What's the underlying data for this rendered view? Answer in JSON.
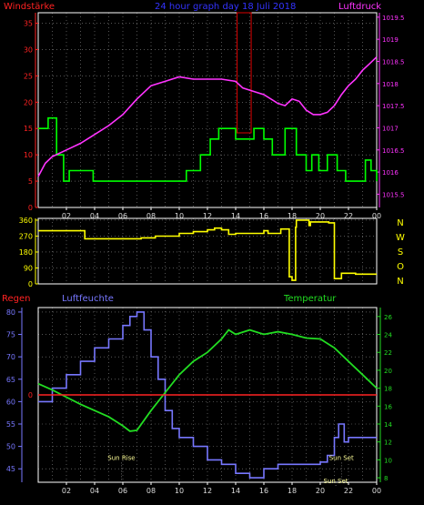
{
  "colors": {
    "background": "#000000",
    "frame": "#ffffff",
    "grid": "#8a8a8a",
    "wind_speed": "#00ff00",
    "pressure": "#ff33ff",
    "wind_dir": "#ffff00",
    "humidity": "#7777ff",
    "temperature": "#22dd22",
    "rain": "#ff2222",
    "title": "#3333ff",
    "highlight_box": "#dd0000"
  },
  "chart_data": [
    {
      "type": "line",
      "title": "24 hour graph day 18 Juli 2018",
      "left_label": "Windstärke",
      "right_label": "Luftdruck",
      "x_ticks": [
        "02",
        "04",
        "06",
        "08",
        "10",
        "12",
        "14",
        "16",
        "18",
        "20",
        "22",
        "00"
      ],
      "ylim_left": [
        0,
        37
      ],
      "yticks_left": [
        "0",
        "5",
        "10",
        "15",
        "20",
        "25",
        "30",
        "35"
      ],
      "ylim_right": [
        1015.2,
        1019.6
      ],
      "yticks_right": [
        "1015.5",
        "1016",
        "1016.5",
        "1017",
        "1017.5",
        "1018",
        "1018.5",
        "1019",
        "1019.5"
      ],
      "grid": true,
      "highlight_range_hours": [
        14.1,
        15.1
      ],
      "series": [
        {
          "name": "Windstärke",
          "axis": "left",
          "step": true,
          "x": [
            0,
            0.7,
            1.3,
            1.8,
            2.2,
            3.3,
            3.9,
            4.2,
            9.5,
            10.5,
            11.5,
            12.2,
            12.8,
            14,
            15.3,
            16,
            16.6,
            17.5,
            18.3,
            19.0,
            19.4,
            19.9,
            20.5,
            21.2,
            21.8,
            22.5,
            23.2,
            23.6,
            24
          ],
          "y": [
            15,
            17,
            10,
            5,
            7,
            7,
            5,
            5,
            5,
            7,
            10,
            13,
            15,
            13,
            15,
            13,
            10,
            15,
            10,
            7,
            10,
            7,
            10,
            7,
            5,
            5,
            9,
            7,
            5
          ]
        },
        {
          "name": "Luftdruck",
          "axis": "right",
          "x": [
            0,
            0.5,
            1,
            2,
            3,
            4,
            5,
            6,
            7,
            8,
            9,
            10,
            11,
            12,
            13,
            14,
            14.5,
            15,
            16,
            17,
            17.5,
            18,
            18.5,
            19,
            19.5,
            20,
            20.5,
            21,
            21.5,
            22,
            22.5,
            23,
            23.5,
            24
          ],
          "y": [
            1015.9,
            1016.2,
            1016.35,
            1016.5,
            1016.65,
            1016.85,
            1017.05,
            1017.3,
            1017.65,
            1017.95,
            1018.05,
            1018.15,
            1018.1,
            1018.1,
            1018.1,
            1018.05,
            1017.9,
            1017.85,
            1017.75,
            1017.55,
            1017.5,
            1017.65,
            1017.6,
            1017.4,
            1017.3,
            1017.3,
            1017.35,
            1017.5,
            1017.75,
            1017.95,
            1018.1,
            1018.3,
            1018.45,
            1018.6
          ]
        }
      ]
    },
    {
      "type": "line",
      "title": "",
      "x_ticks": [
        "02",
        "04",
        "06",
        "08",
        "10",
        "12",
        "14",
        "16",
        "18",
        "20",
        "22",
        "00"
      ],
      "ylim": [
        0,
        370
      ],
      "yticks": [
        "0",
        "90",
        "180",
        "270",
        "360"
      ],
      "right_labels": [
        "N",
        "W",
        "S",
        "O",
        "N"
      ],
      "grid": true,
      "series": [
        {
          "name": "Windrichtung",
          "step": true,
          "x": [
            0,
            3.0,
            3.3,
            7.3,
            8.3,
            10,
            11,
            12,
            12.5,
            13,
            13.5,
            14,
            16,
            16.3,
            17.2,
            17.8,
            18.0,
            18.25,
            18.3,
            19.2,
            19.3,
            20.6,
            21,
            21.5,
            22.5,
            24
          ],
          "y": [
            300,
            300,
            255,
            260,
            270,
            285,
            295,
            305,
            315,
            305,
            280,
            285,
            300,
            285,
            310,
            40,
            20,
            320,
            360,
            330,
            350,
            345,
            30,
            60,
            55,
            55
          ]
        }
      ]
    },
    {
      "type": "line",
      "title": "",
      "labels": {
        "rain": "Regen",
        "humidity": "Luftfeuchte",
        "temperature": "Temperatur"
      },
      "x_ticks": [
        "02",
        "04",
        "06",
        "08",
        "10",
        "12",
        "14",
        "16",
        "18",
        "20",
        "22",
        "00"
      ],
      "ylim_left": [
        42,
        81
      ],
      "yticks_left": [
        "45",
        "50",
        "55",
        "60",
        "65",
        "70",
        "75",
        "80"
      ],
      "ylim_right": [
        7.5,
        27
      ],
      "yticks_right": [
        "8",
        "10",
        "12",
        "14",
        "16",
        "18",
        "20",
        "22",
        "24",
        "26"
      ],
      "rain_ticks": [
        {
          "label": "0",
          "value": 0
        }
      ],
      "annotations": [
        {
          "text": "Sun Rise",
          "hour": 5.9,
          "value": 47
        },
        {
          "text": "Sun Set",
          "hour": 21.5,
          "value": 47
        },
        {
          "text": "Sun Set",
          "hour": 21.1,
          "value": 41.8
        }
      ],
      "grid": true,
      "series": [
        {
          "name": "Regen",
          "axis": "rain",
          "x": [
            0,
            24
          ],
          "y": [
            0,
            0
          ]
        },
        {
          "name": "Luftfeuchte",
          "axis": "left",
          "step": true,
          "x": [
            0,
            1,
            2,
            3,
            4,
            5,
            6,
            6.5,
            7,
            7.5,
            8,
            8.5,
            9,
            9.5,
            10,
            11,
            12,
            13,
            14,
            15,
            16,
            17,
            18,
            19,
            20,
            20.5,
            21,
            21.3,
            21.7,
            22,
            22.5,
            24
          ],
          "y": [
            60,
            63,
            66,
            69,
            72,
            74,
            77,
            79,
            80,
            76,
            70,
            65,
            58,
            54,
            52,
            50,
            47,
            46,
            44,
            43,
            45,
            46,
            46,
            46,
            46.5,
            48,
            52,
            55,
            51,
            52,
            52,
            52
          ]
        },
        {
          "name": "Temperatur",
          "axis": "right",
          "x": [
            0,
            1,
            2,
            3,
            4,
            5,
            5.5,
            6,
            6.5,
            7,
            8,
            9,
            10,
            11,
            12,
            13,
            13.5,
            14,
            15,
            16,
            17,
            18,
            19,
            20,
            21,
            22,
            23,
            24
          ],
          "y": [
            18.5,
            17.8,
            17,
            16.2,
            15.5,
            14.8,
            14.3,
            13.8,
            13.2,
            13.3,
            15.5,
            17.5,
            19.5,
            21,
            22,
            23.5,
            24.5,
            24,
            24.5,
            24,
            24.3,
            24,
            23.6,
            23.5,
            22.5,
            21,
            19.5,
            18
          ]
        }
      ]
    }
  ]
}
